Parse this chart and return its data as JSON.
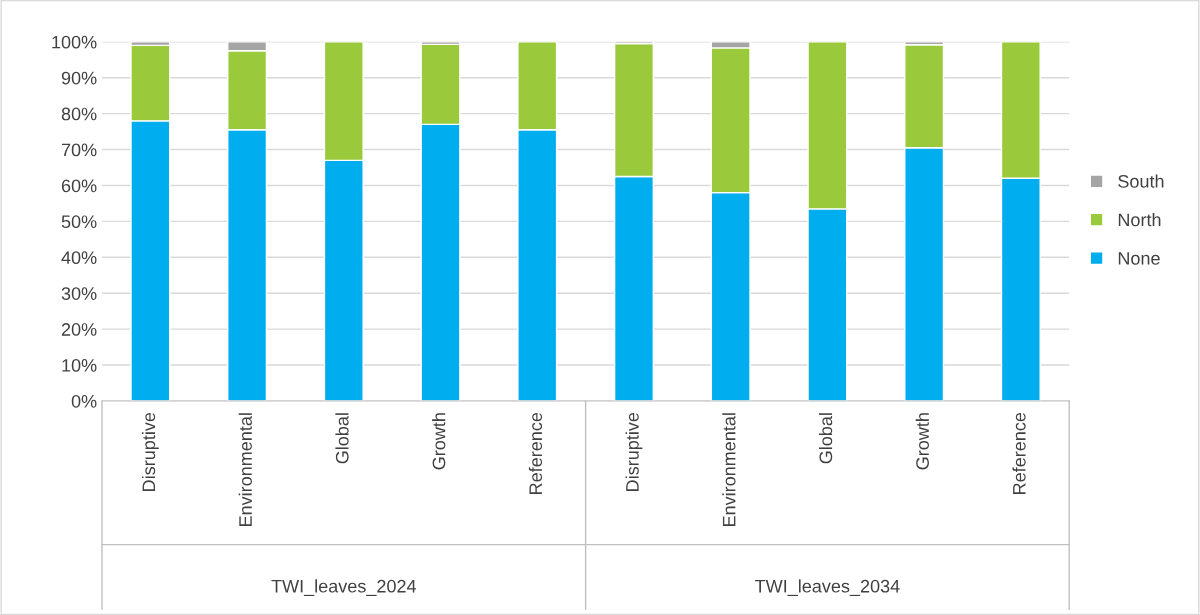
{
  "chart_data": {
    "type": "bar",
    "stacked": true,
    "categories": [
      "Disruptive",
      "Environmental",
      "Global",
      "Growth",
      "Reference",
      "Disruptive",
      "Environmental",
      "Global",
      "Growth",
      "Reference"
    ],
    "series": [
      {
        "name": "None",
        "color": "#00adef",
        "values": [
          78,
          75.5,
          67,
          77,
          75.5,
          62.5,
          58,
          53.5,
          70.5,
          62
        ]
      },
      {
        "name": "North",
        "color": "#9aca3c",
        "values": [
          21,
          22,
          33,
          22.3,
          24.5,
          37,
          40.3,
          46.5,
          28.7,
          38
        ]
      },
      {
        "name": "South",
        "color": "#a5a5a5",
        "values": [
          1,
          2.5,
          null,
          0.7,
          null,
          0.5,
          1.7,
          null,
          0.8,
          null
        ]
      }
    ],
    "ylim": [
      0,
      100
    ],
    "yticks": [
      {
        "value": 0,
        "label": "0%"
      },
      {
        "value": 10,
        "label": "10%"
      },
      {
        "value": 20,
        "label": "20%"
      },
      {
        "value": 30,
        "label": "30%"
      },
      {
        "value": 40,
        "label": "40%"
      },
      {
        "value": 50,
        "label": "50%"
      },
      {
        "value": 60,
        "label": "60%"
      },
      {
        "value": 70,
        "label": "70%"
      },
      {
        "value": 80,
        "label": "80%"
      },
      {
        "value": 90,
        "label": "90%"
      },
      {
        "value": 100,
        "label": "100%"
      }
    ],
    "grid": "y",
    "legend": "right",
    "annotations": [
      "TWI_leaves_2024",
      "TWI_leaves_2034"
    ]
  }
}
